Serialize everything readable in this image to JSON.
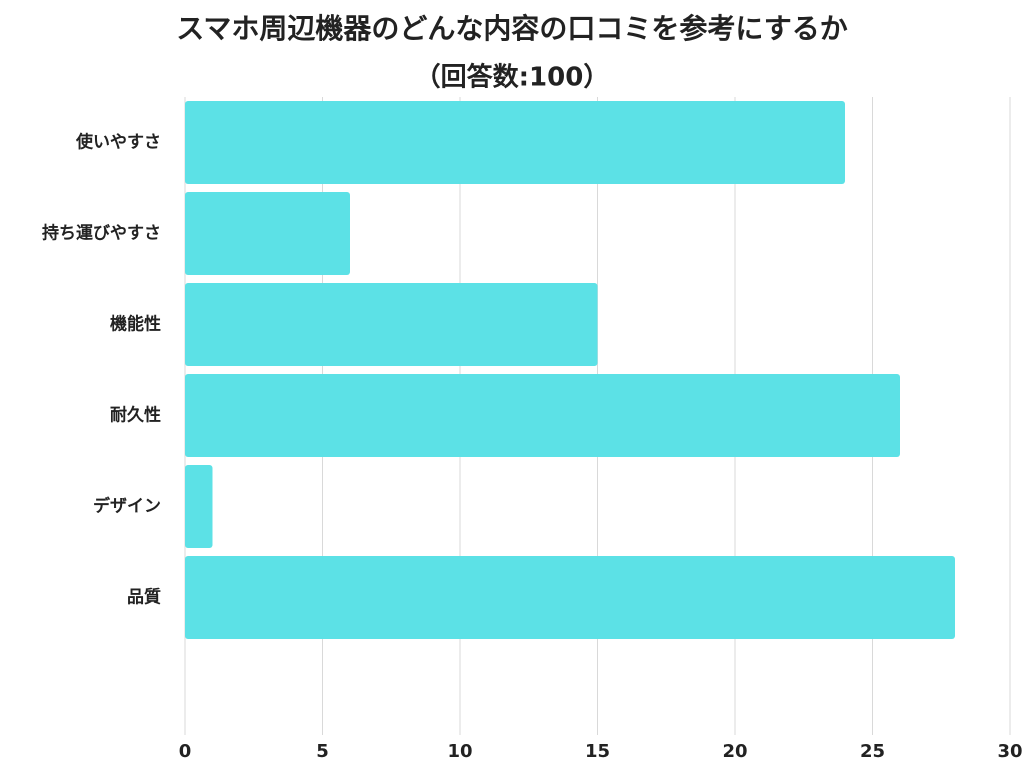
{
  "chart_data": {
    "type": "bar",
    "orientation": "horizontal",
    "title": "スマホ周辺機器のどんな内容の口コミを参考にするか",
    "subtitle": "（回答数:100）",
    "categories": [
      "使いやすさ",
      "持ち運びやすさ",
      "機能性",
      "耐久性",
      "デザイン",
      "品質"
    ],
    "values": [
      24,
      6,
      15,
      26,
      1,
      28
    ],
    "color": "#5ce1e6",
    "xlim": [
      0,
      30
    ],
    "xticks": [
      0,
      5,
      10,
      15,
      20,
      25,
      30
    ],
    "grid": true
  }
}
